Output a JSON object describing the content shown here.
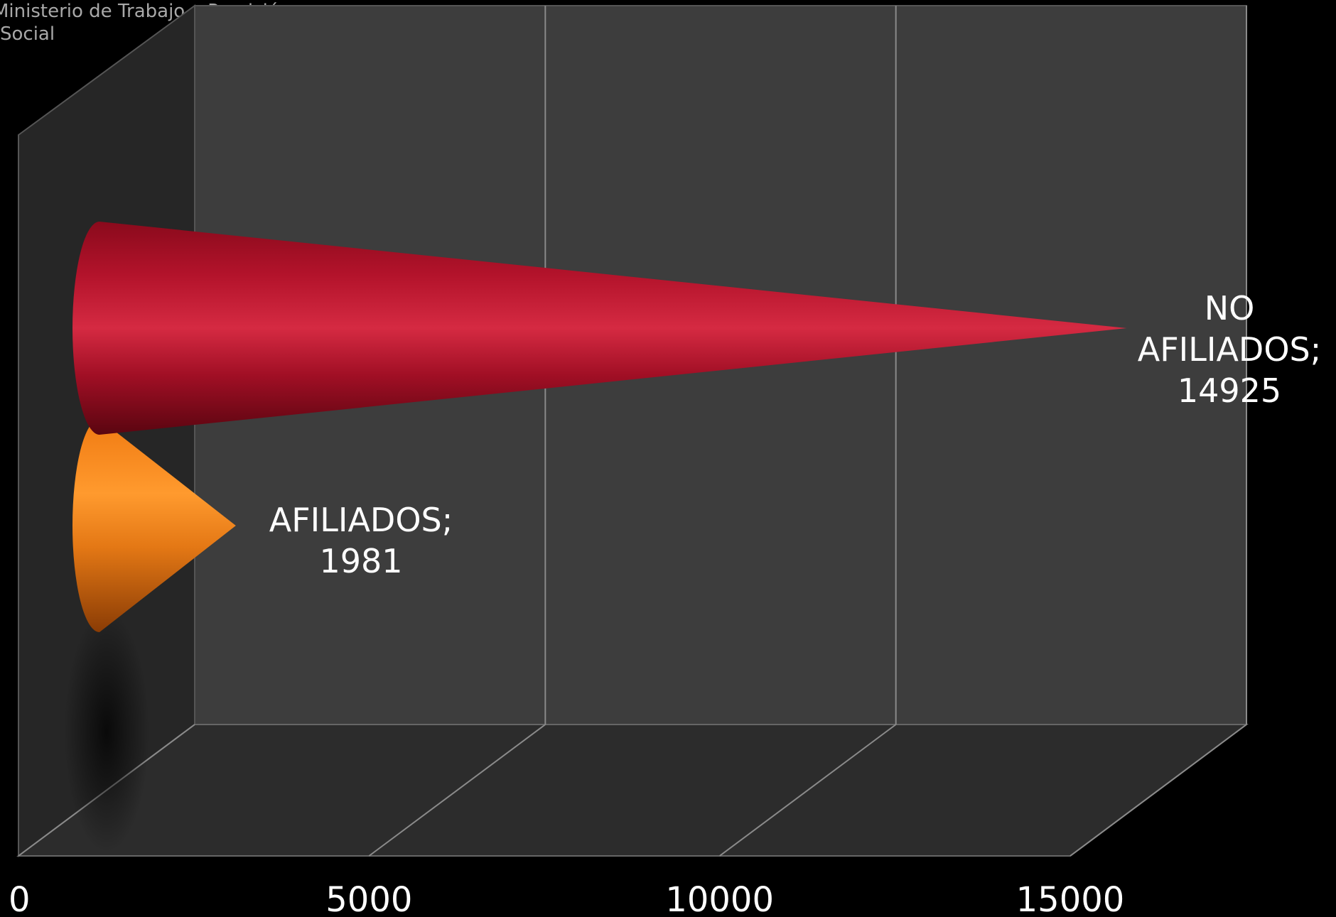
{
  "source_note": "Ministerio de Trabajo y Previsión Social",
  "chart_data": {
    "type": "bar",
    "subtype": "3d-horizontal-cone",
    "categories": [
      "AFILIADOS",
      "NO AFILIADOS"
    ],
    "values": [
      1981,
      14925
    ],
    "data_labels": [
      [
        "AFILIADOS;",
        "1981"
      ],
      [
        "NO",
        "AFILIADOS;",
        "14925"
      ]
    ],
    "x_ticks": [
      0,
      5000,
      10000,
      15000
    ],
    "tick_labels": [
      "0",
      "5000",
      "10000",
      "15000"
    ],
    "xlim": [
      0,
      15000
    ],
    "grid": true,
    "legend": "none",
    "title": "",
    "xlabel": "",
    "ylabel": "",
    "colors": {
      "background": "#000000",
      "wall": "#3d3d3d",
      "floor": "#2c2c2c",
      "side_wall": "#262626",
      "gridline": "#8a8a8a",
      "label_text": "#ffffff",
      "AFILIADOS": "#f58a1f",
      "NO AFILIADOS": "#b0142c"
    }
  }
}
